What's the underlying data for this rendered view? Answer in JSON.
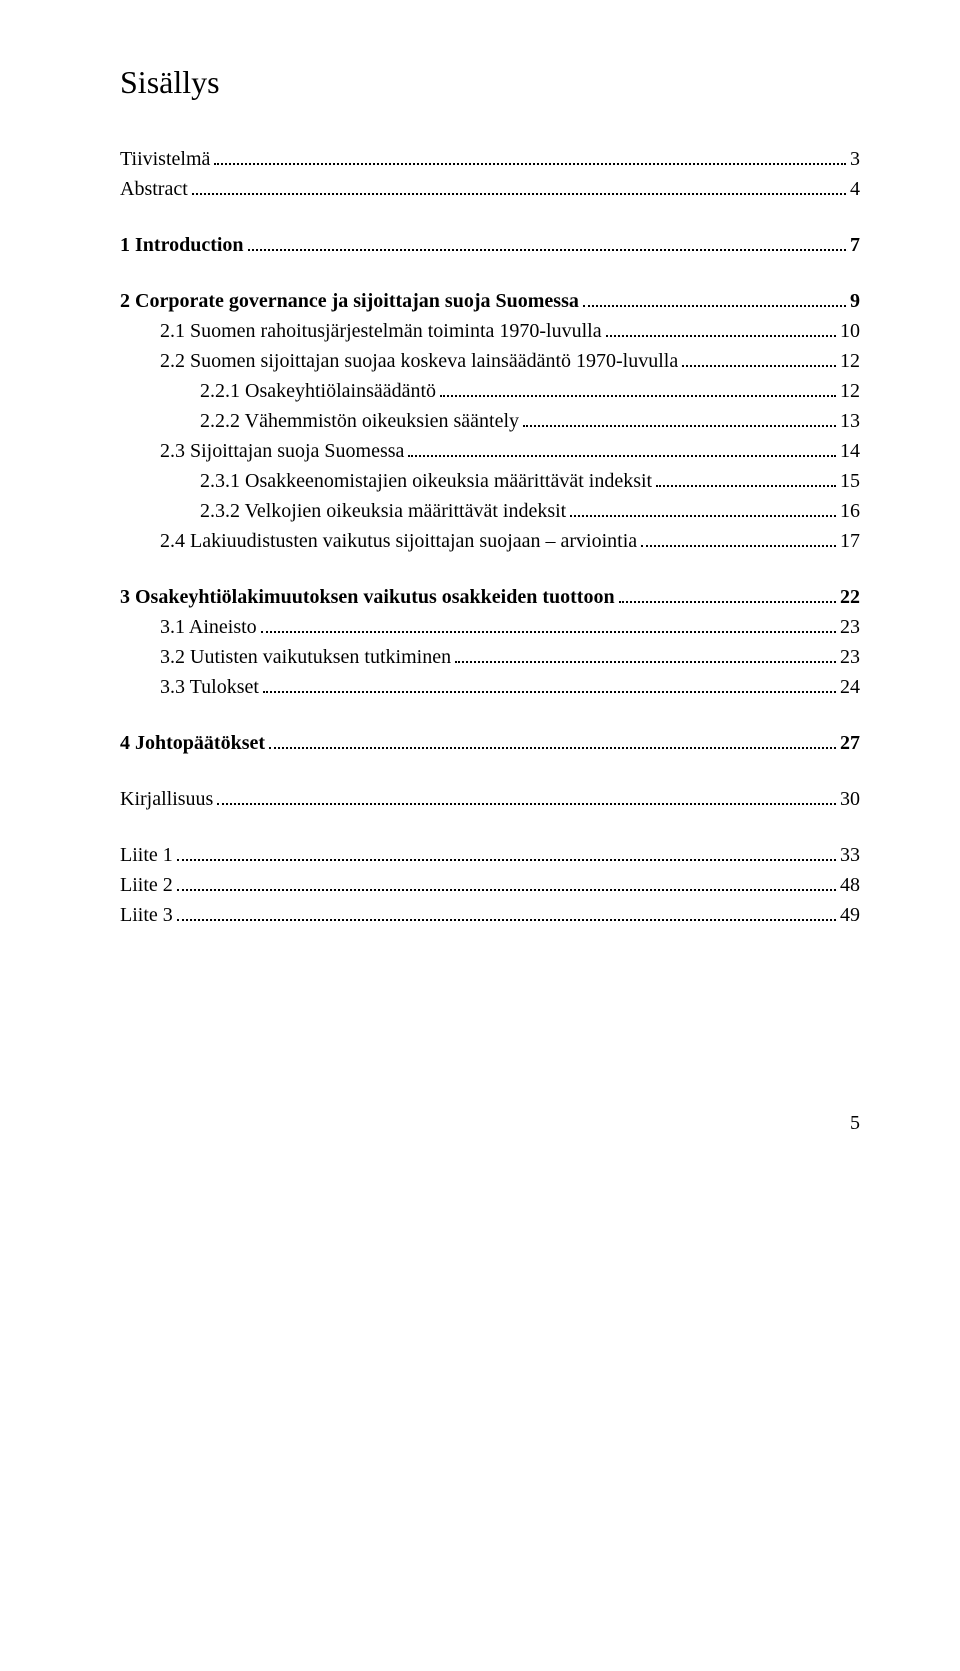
{
  "title": "Sisällys",
  "page_number": "5",
  "entries": [
    {
      "label": "Tiivistelmä",
      "page": "3",
      "indent": 0,
      "bold": false,
      "gap": false
    },
    {
      "label": "Abstract",
      "page": "4",
      "indent": 0,
      "bold": false,
      "gap": false
    },
    {
      "label": "1   Introduction",
      "page": "7",
      "indent": 0,
      "bold": true,
      "gap": true
    },
    {
      "label": "2   Corporate governance ja sijoittajan suoja Suomessa",
      "page": "9",
      "indent": 0,
      "bold": true,
      "gap": true
    },
    {
      "label": "2.1   Suomen rahoitusjärjestelmän toiminta 1970-luvulla",
      "page": "10",
      "indent": 1,
      "bold": false,
      "gap": false
    },
    {
      "label": "2.2   Suomen sijoittajan suojaa koskeva lainsäädäntö 1970-luvulla",
      "page": "12",
      "indent": 1,
      "bold": false,
      "gap": false
    },
    {
      "label": "2.2.1   Osakeyhtiölainsäädäntö",
      "page": "12",
      "indent": 2,
      "bold": false,
      "gap": false
    },
    {
      "label": "2.2.2   Vähemmistön oikeuksien sääntely",
      "page": "13",
      "indent": 2,
      "bold": false,
      "gap": false
    },
    {
      "label": "2.3   Sijoittajan suoja Suomessa",
      "page": "14",
      "indent": 1,
      "bold": false,
      "gap": false
    },
    {
      "label": "2.3.1   Osakkeenomistajien oikeuksia määrittävät indeksit",
      "page": "15",
      "indent": 2,
      "bold": false,
      "gap": false
    },
    {
      "label": "2.3.2   Velkojien oikeuksia määrittävät indeksit",
      "page": "16",
      "indent": 2,
      "bold": false,
      "gap": false
    },
    {
      "label": "2.4   Lakiuudistusten vaikutus sijoittajan suojaan – arviointia",
      "page": "17",
      "indent": 1,
      "bold": false,
      "gap": false
    },
    {
      "label": "3   Osakeyhtiölakimuutoksen vaikutus osakkeiden tuottoon",
      "page": "22",
      "indent": 0,
      "bold": true,
      "gap": true
    },
    {
      "label": "3.1   Aineisto",
      "page": "23",
      "indent": 1,
      "bold": false,
      "gap": false
    },
    {
      "label": "3.2   Uutisten vaikutuksen tutkiminen",
      "page": "23",
      "indent": 1,
      "bold": false,
      "gap": false
    },
    {
      "label": "3.3   Tulokset",
      "page": "24",
      "indent": 1,
      "bold": false,
      "gap": false
    },
    {
      "label": "4   Johtopäätökset",
      "page": "27",
      "indent": 0,
      "bold": true,
      "gap": true
    },
    {
      "label": "Kirjallisuus",
      "page": "30",
      "indent": 0,
      "bold": false,
      "gap": true
    },
    {
      "label": "Liite 1",
      "page": "33",
      "indent": 0,
      "bold": false,
      "gap": true
    },
    {
      "label": "Liite 2",
      "page": "48",
      "indent": 0,
      "bold": false,
      "gap": false
    },
    {
      "label": "Liite 3",
      "page": "49",
      "indent": 0,
      "bold": false,
      "gap": false
    }
  ]
}
